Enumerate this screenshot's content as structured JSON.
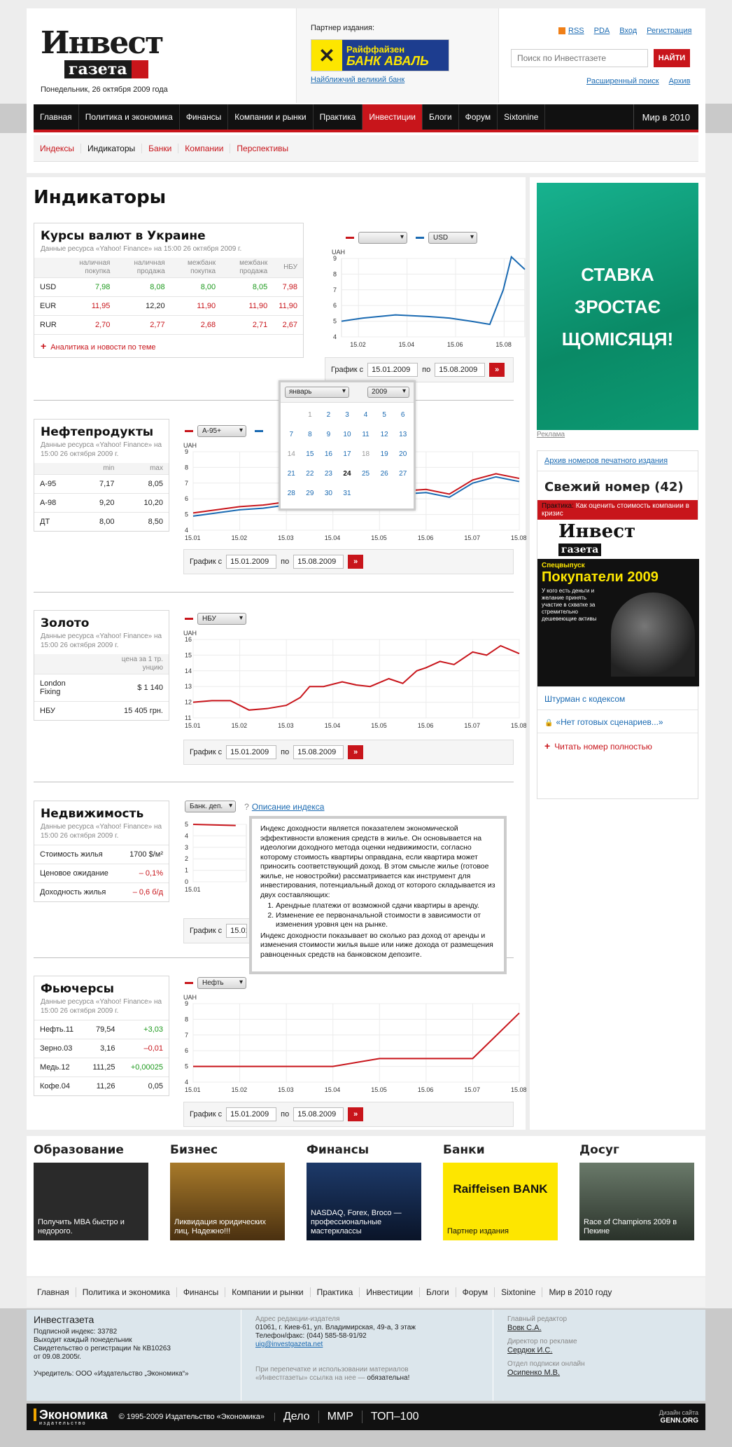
{
  "header": {
    "logo_line1": "Инвест",
    "logo_line2": "газета",
    "date": "Понедельник, 26 октября 2009 года",
    "partner_label": "Партнер издания:",
    "bank_line1": "Райффайзен",
    "bank_line2": "БАНК АВАЛЬ",
    "bank_link": "Найближчий великий банк",
    "top_links": [
      "RSS",
      "PDA",
      "Вход",
      "Регистрация"
    ],
    "search_placeholder": "Поиск по Инвестгазете",
    "search_button": "НАЙТИ",
    "adv_links": [
      "Расширенный поиск",
      "Архив"
    ]
  },
  "nav": {
    "items": [
      "Главная",
      "Политика и экономика",
      "Финансы",
      "Компании и рынки",
      "Практика",
      "Инвестиции",
      "Блоги",
      "Форум",
      "Sixtonine"
    ],
    "active": "Инвестиции",
    "right": "Мир в 2010"
  },
  "subnav": {
    "items": [
      "Индексы",
      "Индикаторы",
      "Банки",
      "Компании",
      "Перспективы"
    ],
    "active": "Индикаторы"
  },
  "page_title": "Индикаторы",
  "common": {
    "date_label": "График с",
    "date_from": "15.01.2009",
    "date_sep": "по",
    "date_to": "15.08.2009",
    "go": "»"
  },
  "currency": {
    "title": "Курсы валют в Украине",
    "source": "Данные ресурса «Yahoo! Finance» на 15:00 26 октября 2009 г.",
    "headers": [
      "",
      "наличная покупка",
      "наличная продажа",
      "межбанк покупка",
      "межбанк продажа",
      "НБУ"
    ],
    "rows": [
      {
        "name": "USD",
        "v": [
          "7,98",
          "8,08",
          "8,00",
          "8,05",
          "7,98"
        ],
        "color": "green"
      },
      {
        "name": "EUR",
        "v": [
          "11,95",
          "12,20",
          "11,90",
          "11,90",
          "11,90"
        ],
        "color": "red"
      },
      {
        "name": "RUR",
        "v": [
          "2,70",
          "2,77",
          "2,68",
          "2,71",
          "2,67"
        ],
        "color": "red"
      }
    ],
    "more": "Аналитика и новости по теме",
    "select1": "",
    "select2": "USD",
    "unit": "UAH"
  },
  "calendar": {
    "month": "январь",
    "year": "2009",
    "days": [
      "",
      "1",
      "2",
      "3",
      "4",
      "5",
      "6",
      "7",
      "8",
      "9",
      "10",
      "11",
      "12",
      "13",
      "14",
      "15",
      "16",
      "17",
      "18",
      "19",
      "20",
      "21",
      "22",
      "23",
      "24",
      "25",
      "26",
      "27",
      "28",
      "29",
      "30",
      "31"
    ],
    "muted": [
      "1",
      "14",
      "18"
    ],
    "today": "24"
  },
  "oil": {
    "title": "Нефтепродукты",
    "source": "Данные ресурса «Yahoo! Finance» на 15:00 26 октября 2009 г.",
    "headers": [
      "",
      "min",
      "max"
    ],
    "rows": [
      [
        "А-95",
        "7,17",
        "8,05"
      ],
      [
        "А-98",
        "9,20",
        "10,20"
      ],
      [
        "ДТ",
        "8,00",
        "8,50"
      ]
    ],
    "select1": "А-95+",
    "unit": "UAH"
  },
  "gold": {
    "title": "Золото",
    "source": "Данные ресурса «Yahoo! Finance» на 15:00 26 октября 2009 г.",
    "header": "цена за 1 тр. унцию",
    "rows": [
      [
        "London Fixing",
        "$ 1 140"
      ],
      [
        "НБУ",
        "15 405 грн."
      ]
    ],
    "select1": "НБУ",
    "unit": "UAH"
  },
  "realty": {
    "title": "Недвижимость",
    "source": "Данные ресурса «Yahoo! Finance» на 15:00 26 октября 2009 г.",
    "rows": [
      [
        "Стоимость жилья",
        "1700 $/м²",
        ""
      ],
      [
        "Ценовое ожидание",
        "– 0,1%",
        "red"
      ],
      [
        "Доходность жилья",
        "– 0,6 б/д",
        "red"
      ]
    ],
    "select1": "Банк. деп.",
    "help": "?",
    "desc_link": "Описание индекса",
    "tooltip_p1": "Индекс доходности является показателем экономической эффективности вложения средств в жилье. Он основывается на идеологии доходного метода оценки недвижимости, согласно которому стоимость квартиры оправдана, если квартира может приносить соответствующий доход. В этом смысле жилье (готовое жилье, не новостройки) рассматривается как инструмент для инвестирования, потенциальный доход от которого складывается из двух составляющих:",
    "tooltip_li1": "Арендные платежи от возможной сдачи квартиры в аренду.",
    "tooltip_li2": "Изменение ее первоначальной стоимости в зависимости от изменения уровня цен на рынке.",
    "tooltip_p2": "Индекс доходности показывает во сколько раз доход от аренды и изменения стоимости жилья выше или ниже дохода от размещения равноценных средств на банковском депозите."
  },
  "futures": {
    "title": "Фьючерсы",
    "source": "Данные ресурса «Yahoo! Finance» на 15:00 26 октября 2009 г.",
    "rows": [
      [
        "Нефть.11",
        "79,54",
        "+3,03",
        "green"
      ],
      [
        "Зерно.03",
        "3,16",
        "–0,01",
        "red"
      ],
      [
        "Медь.12",
        "111,25",
        "+0,00025",
        "green"
      ],
      [
        "Кофе.04",
        "11,26",
        "0,05",
        ""
      ]
    ],
    "select1": "Нефть",
    "unit": "UAH"
  },
  "chart_data": [
    {
      "type": "line",
      "id": "usd",
      "ylabel": "UAH",
      "ylim": [
        4,
        9
      ],
      "categories": [
        "15.02",
        "15.04",
        "15.06",
        "15.08"
      ],
      "series": [
        {
          "name": "USD",
          "color": "#1a6ab2",
          "x": [
            0,
            0.4,
            1,
            1.6,
            2,
            2.4,
            2.75,
            3,
            3.15,
            3.4
          ],
          "y": [
            5.0,
            5.2,
            5.4,
            5.3,
            5.2,
            5.0,
            4.8,
            7.0,
            9.1,
            8.3
          ]
        }
      ]
    },
    {
      "type": "line",
      "id": "oil",
      "ylabel": "UAH",
      "ylim": [
        4,
        9
      ],
      "categories": [
        "15.01",
        "15.02",
        "15.03",
        "15.04",
        "15.05",
        "15.06",
        "15.07",
        "15.08"
      ],
      "series": [
        {
          "name": "А-95+",
          "color": "#c8151b",
          "x": [
            0,
            0.5,
            1,
            1.5,
            2,
            2.5,
            3,
            3.5,
            4,
            4.5,
            5,
            5.5,
            6,
            6.5,
            7
          ],
          "y": [
            5.1,
            5.3,
            5.5,
            5.6,
            5.8,
            5.9,
            6.0,
            6.3,
            6.2,
            6.5,
            6.6,
            6.3,
            7.2,
            7.6,
            7.3
          ]
        },
        {
          "name": "",
          "color": "#1a6ab2",
          "x": [
            0,
            0.5,
            1,
            1.5,
            2,
            2.5,
            3,
            3.5,
            4,
            4.5,
            5,
            5.5,
            6,
            6.5,
            7
          ],
          "y": [
            4.9,
            5.1,
            5.3,
            5.4,
            5.6,
            5.7,
            5.8,
            6.1,
            6.0,
            6.3,
            6.4,
            6.1,
            7.0,
            7.4,
            7.1
          ]
        }
      ]
    },
    {
      "type": "line",
      "id": "gold",
      "ylabel": "UAH",
      "ylim": [
        11,
        16
      ],
      "categories": [
        "15.01",
        "15.02",
        "15.03",
        "15.04",
        "15.05",
        "15.06",
        "15.07",
        "15.08"
      ],
      "series": [
        {
          "name": "НБУ",
          "color": "#c8151b",
          "x": [
            0,
            0.4,
            0.8,
            1.2,
            1.6,
            2,
            2.3,
            2.5,
            2.8,
            3.2,
            3.5,
            3.8,
            4.2,
            4.5,
            4.8,
            5,
            5.3,
            5.6,
            6,
            6.3,
            6.6,
            7
          ],
          "y": [
            12.0,
            12.1,
            12.1,
            11.5,
            11.6,
            11.8,
            12.3,
            13.0,
            13.0,
            13.3,
            13.1,
            13.0,
            13.5,
            13.2,
            14.0,
            14.2,
            14.6,
            14.4,
            15.2,
            15.0,
            15.6,
            15.1
          ]
        }
      ]
    },
    {
      "type": "line",
      "id": "realty",
      "ylabel": "",
      "ylim": [
        0,
        5
      ],
      "categories": [
        "15.01"
      ],
      "series": [
        {
          "name": "Банк. деп.",
          "color": "#c8151b",
          "x": [
            0,
            0.8
          ],
          "y": [
            5,
            4.9
          ]
        }
      ]
    },
    {
      "type": "line",
      "id": "fut",
      "ylabel": "UAH",
      "ylim": [
        4,
        9
      ],
      "categories": [
        "15.01",
        "15.02",
        "15.03",
        "15.04",
        "15.05",
        "15.06",
        "15.07",
        "15.08"
      ],
      "series": [
        {
          "name": "Нефть",
          "color": "#c8151b",
          "x": [
            0,
            1,
            2,
            3,
            4,
            5,
            6,
            7
          ],
          "y": [
            5.0,
            5.0,
            5.0,
            5.0,
            5.5,
            5.5,
            5.5,
            8.4
          ]
        }
      ]
    }
  ],
  "side": {
    "banner": "СТАВКА ЗРОСТАЄ ЩОМІСЯЦЯ!",
    "reklama": "Реклама",
    "archive": "Архив номеров печатного издания",
    "fresh": "Свежий номер (42)",
    "praktika_label": "Практика:",
    "praktika_text": "Как оценить стоимость компании в кризис",
    "cover_logo1": "Инвест",
    "cover_logo2": "газета",
    "cover_spec": "Спецвыпуск",
    "cover_title": "Покупатели 2009",
    "cover_text": "У кого есть деньги и желание принять участие в схватке за стремительно дешевеющие активы",
    "link1": "Штурман с кодексом",
    "link2": "«Нет готовых сценариев...»",
    "link3": "Читать номер полностью"
  },
  "categories": [
    {
      "title": "Образование",
      "caption": "Получить MBA быстро и недорого.",
      "bg": "#2a2a2a"
    },
    {
      "title": "Бизнес",
      "caption": "Ликвидация юридических лиц. Надежно!!!",
      "bg": "#6b4a1a"
    },
    {
      "title": "Финансы",
      "caption": "NASDAQ, Forex, Brocо — профессиональные мастерклассы",
      "bg": "#14213d"
    },
    {
      "title": "Банки",
      "caption": "Партнер издания",
      "bg": "#fde600"
    },
    {
      "title": "Досуг",
      "caption": "Race of Champions 2009 в Пекине",
      "bg": "#3a4a3a"
    }
  ],
  "bank_cat_logo": "Raiffeisen BANK",
  "footer_nav": [
    "Главная",
    "Политика и экономика",
    "Финансы",
    "Компании и рынки",
    "Практика",
    "Инвестиции",
    "Блоги",
    "Форум",
    "Sixtonine",
    "Мир в 2010 году"
  ],
  "footer": {
    "name": "Инвестгазета",
    "info": [
      "Подписной индекс: 33782",
      "Выходит каждый понедельник",
      "Свидетельство о регистрации № КВ10263",
      "от 09.08.2005г.",
      "",
      "Учредитель: ООО «Издательство „Экономика“»"
    ],
    "addr_label": "Адрес редакции-издателя",
    "addr": "01061, г. Киев-61, ул. Владимирская, 49-а, 3 этаж",
    "phone": "Телефон/факс: (044) 585-58-91/92",
    "email": "uig@investgazeta.net",
    "reprint1": "При перепечатке и использовании материалов",
    "reprint2": "«Инвестгазеты» ссылка на нее —",
    "reprint3": "обязательна!",
    "editor_label": "Главный редактор",
    "editor": "Вовк С.А.",
    "ads_label": "Директор по рекламе",
    "ads": "Сердюк И.С.",
    "subs_label": "Отдел подписки онлайн",
    "subs": "Осипенко М.В.",
    "econ_logo": "Экономика",
    "econ_sub": "издательство",
    "copyright": "© 1995-2009 Издательство «Экономика»",
    "partners": [
      "Дело",
      "МMP",
      "ТОП–100"
    ],
    "design_label": "Дизайн сайта",
    "design": "GENN.ORG"
  }
}
